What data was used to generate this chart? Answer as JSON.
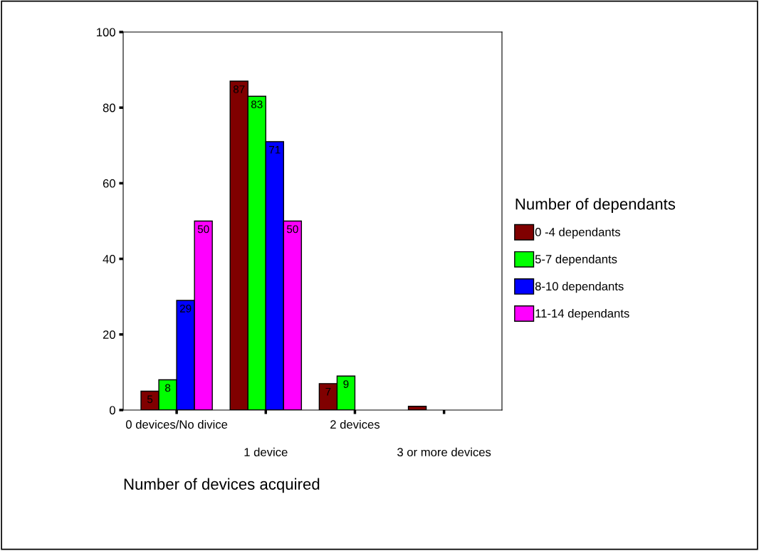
{
  "chart_data": {
    "type": "bar",
    "xlabel": "Number of devices acquired",
    "legend_title": "Number of dependants",
    "categories": [
      "0 devices/No divice",
      "1 device",
      "2 devices",
      "3 or more devices"
    ],
    "series": [
      {
        "name": "0 -4 dependants",
        "color": "#800000",
        "values": [
          5,
          87,
          7,
          1
        ],
        "value_labels": [
          "5",
          "87",
          "7",
          null
        ]
      },
      {
        "name": "5-7 dependants",
        "color": "#00ff00",
        "values": [
          8,
          83,
          9,
          null
        ],
        "value_labels": [
          "8",
          "83",
          "9",
          null
        ]
      },
      {
        "name": "8-10 dependants",
        "color": "#0000ff",
        "values": [
          29,
          71,
          null,
          null
        ],
        "value_labels": [
          "29",
          "71",
          null,
          null
        ]
      },
      {
        "name": "11-14 dependants",
        "color": "#ff00ff",
        "values": [
          50,
          50,
          null,
          null
        ],
        "value_labels": [
          "50",
          "50",
          null,
          null
        ]
      }
    ],
    "ylim": [
      0,
      100
    ],
    "yticks": [
      0,
      20,
      40,
      60,
      80,
      100
    ],
    "grid": false,
    "legend": "right"
  }
}
